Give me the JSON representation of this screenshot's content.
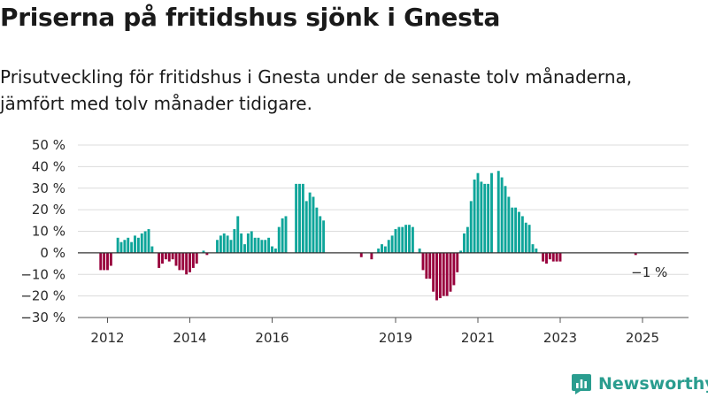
{
  "header": {
    "title": "Priserna på fritidshus sjönk i Gnesta",
    "subtitle": "Prisutveckling för fritidshus i Gnesta under de senaste tolv månaderna, jämfört med tolv månader tidigare."
  },
  "logo": {
    "text": "Newsworthy",
    "icon": "newsworthy-logo-icon"
  },
  "colors": {
    "positive": "#0ea59a",
    "negative": "#98003c",
    "grid": "#dcdcdc",
    "zero_line": "#333333"
  },
  "chart_data": {
    "type": "bar",
    "ylim": [
      -30,
      50
    ],
    "yticks": [
      -30,
      -20,
      -10,
      0,
      10,
      20,
      30,
      40,
      50
    ],
    "ytick_labels": [
      "−30 %",
      "−20 %",
      "−10 %",
      "0 %",
      "10 %",
      "20 %",
      "30 %",
      "40 %",
      "50 %"
    ],
    "x_ticks": [
      {
        "label": "2012",
        "date": "2012-01"
      },
      {
        "label": "2014",
        "date": "2014-01"
      },
      {
        "label": "2016",
        "date": "2016-01"
      },
      {
        "label": "2019",
        "date": "2019-01"
      },
      {
        "label": "2021",
        "date": "2021-01"
      },
      {
        "label": "2023",
        "date": "2023-01"
      },
      {
        "label": "2025",
        "date": "2025-01"
      }
    ],
    "annotation": {
      "text": "−1 %",
      "date": "2025-03",
      "value": -1
    },
    "series": [
      {
        "start": "2011-11",
        "values": [
          -8,
          -8,
          -8,
          -6,
          0,
          7,
          5,
          6,
          7,
          5,
          8,
          7,
          9,
          10,
          11,
          3,
          0,
          -7,
          -5,
          -3,
          -4,
          -3,
          -6,
          -8,
          -8,
          -10,
          -9,
          -7,
          -5,
          0,
          1,
          -1,
          0,
          0,
          6,
          8,
          9,
          8,
          6,
          11,
          17,
          9,
          4,
          9,
          10,
          7,
          7,
          6,
          6,
          7,
          3,
          2,
          12,
          16,
          17,
          0,
          0,
          32,
          32,
          32,
          24,
          28,
          26,
          21,
          17,
          15,
          0,
          0,
          0,
          0,
          0,
          0,
          0,
          0,
          0,
          0,
          -2,
          0,
          0,
          -3,
          0,
          2,
          4,
          3,
          6,
          8,
          11,
          12,
          12,
          13,
          13,
          12,
          0,
          2,
          -8,
          -12,
          -12,
          -18,
          -22,
          -21,
          -20,
          -20,
          -18,
          -15,
          -9,
          1,
          9,
          12,
          24,
          34,
          37,
          33,
          32,
          32,
          37,
          0,
          38,
          35,
          31,
          26,
          21,
          21,
          19,
          17,
          14,
          13,
          4,
          2,
          0,
          -4,
          -5,
          -3,
          -4,
          -4,
          -4,
          0,
          0,
          0,
          0,
          0,
          0,
          0,
          0,
          0,
          0,
          0,
          0,
          0,
          0,
          0,
          0,
          0,
          0,
          0,
          0,
          0,
          -1,
          0,
          0,
          0
        ]
      }
    ]
  }
}
